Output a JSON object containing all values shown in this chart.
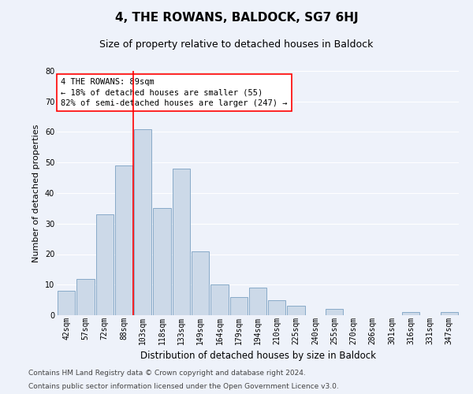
{
  "title": "4, THE ROWANS, BALDOCK, SG7 6HJ",
  "subtitle": "Size of property relative to detached houses in Baldock",
  "xlabel": "Distribution of detached houses by size in Baldock",
  "ylabel": "Number of detached properties",
  "categories": [
    "42sqm",
    "57sqm",
    "72sqm",
    "88sqm",
    "103sqm",
    "118sqm",
    "133sqm",
    "149sqm",
    "164sqm",
    "179sqm",
    "194sqm",
    "210sqm",
    "225sqm",
    "240sqm",
    "255sqm",
    "270sqm",
    "286sqm",
    "301sqm",
    "316sqm",
    "331sqm",
    "347sqm"
  ],
  "values": [
    8,
    12,
    33,
    49,
    61,
    35,
    48,
    21,
    10,
    6,
    9,
    5,
    3,
    0,
    2,
    0,
    0,
    0,
    1,
    0,
    1
  ],
  "bar_color": "#ccd9e8",
  "bar_edge_color": "#88aac8",
  "red_line_x": 3.5,
  "annotation_line1": "4 THE ROWANS: 89sqm",
  "annotation_line2": "← 18% of detached houses are smaller (55)",
  "annotation_line3": "82% of semi-detached houses are larger (247) →",
  "annotation_box_color": "white",
  "annotation_box_edge": "red",
  "red_line_color": "red",
  "ylim": [
    0,
    80
  ],
  "yticks": [
    0,
    10,
    20,
    30,
    40,
    50,
    60,
    70,
    80
  ],
  "footer1": "Contains HM Land Registry data © Crown copyright and database right 2024.",
  "footer2": "Contains public sector information licensed under the Open Government Licence v3.0.",
  "bg_color": "#eef2fa",
  "grid_color": "white",
  "title_fontsize": 11,
  "subtitle_fontsize": 9,
  "xlabel_fontsize": 8.5,
  "ylabel_fontsize": 8,
  "tick_fontsize": 7,
  "annotation_fontsize": 7.5,
  "footer_fontsize": 6.5
}
